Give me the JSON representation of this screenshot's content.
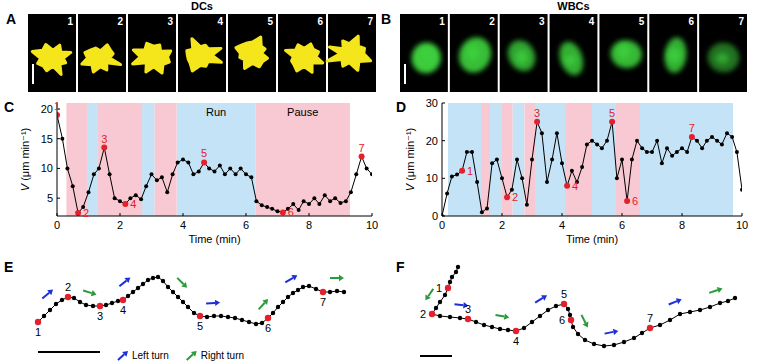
{
  "chart_data": [
    {
      "type": "image_strip",
      "panel": "A",
      "title": "DCs",
      "color": "#f5e61e",
      "frames": [
        "1",
        "2",
        "3",
        "4",
        "5",
        "6",
        "7"
      ]
    },
    {
      "type": "image_strip",
      "panel": "B",
      "title": "WBCs",
      "color": "#3ccf3c",
      "frames": [
        "1",
        "2",
        "3",
        "4",
        "5",
        "6",
        "7"
      ]
    },
    {
      "type": "line",
      "panel": "C",
      "color": "#000000",
      "marker": "circle",
      "x": [
        0,
        0.17,
        0.33,
        0.5,
        0.67,
        0.83,
        1,
        1.17,
        1.33,
        1.5,
        1.67,
        1.83,
        2,
        2.17,
        2.33,
        2.5,
        2.67,
        2.83,
        3,
        3.17,
        3.33,
        3.5,
        3.67,
        3.83,
        4,
        4.17,
        4.33,
        4.5,
        4.67,
        4.83,
        5,
        5.17,
        5.33,
        5.5,
        5.67,
        5.83,
        6,
        6.17,
        6.33,
        6.5,
        6.67,
        6.83,
        7,
        7.17,
        7.33,
        7.5,
        7.67,
        7.83,
        8,
        8.17,
        8.33,
        8.5,
        8.67,
        8.83,
        9,
        9.17,
        9.33,
        9.5,
        9.67,
        9.83,
        10
      ],
      "values": [
        19,
        15,
        10,
        7,
        2.5,
        3.5,
        6,
        9,
        10,
        13.5,
        9,
        5,
        4.5,
        4,
        5,
        5.5,
        4.8,
        7,
        9,
        8,
        8.5,
        6,
        9,
        11,
        11.5,
        11,
        9,
        9.5,
        11,
        10,
        9.5,
        10.5,
        9,
        10,
        9,
        10,
        9,
        8.5,
        4.5,
        3.8,
        3.5,
        3.2,
        2.8,
        2.6,
        3.2,
        4,
        3,
        4.5,
        4,
        5,
        4,
        5.5,
        4.5,
        5,
        4.2,
        4.5,
        6,
        9,
        12,
        10,
        9
      ],
      "point_labels": [
        "1",
        null,
        null,
        null,
        "2",
        null,
        null,
        null,
        null,
        "3",
        null,
        null,
        null,
        "4",
        null,
        null,
        null,
        null,
        null,
        null,
        null,
        null,
        null,
        null,
        null,
        null,
        null,
        null,
        "5",
        null,
        null,
        null,
        null,
        null,
        null,
        null,
        null,
        null,
        null,
        null,
        null,
        null,
        null,
        "6",
        null,
        null,
        null,
        null,
        null,
        null,
        null,
        null,
        null,
        null,
        null,
        null,
        null,
        null,
        "7",
        null,
        null
      ],
      "xlim": [
        0,
        10
      ],
      "xticks": [
        0,
        2,
        4,
        6,
        8,
        10
      ],
      "ylim": [
        2,
        21
      ],
      "yticks": [
        5,
        10,
        15,
        20
      ],
      "xlabel": "Time (min)",
      "ylabel": "V (μm min⁻¹)",
      "phases": [
        {
          "name": "Run",
          "color": "#c5e3f6",
          "intervals": [
            [
              0.95,
              1.3
            ],
            [
              2.7,
              3.1
            ],
            [
              3.8,
              6.3
            ]
          ]
        },
        {
          "name": "Pause",
          "color": "#f8c9d2",
          "intervals": [
            [
              0.3,
              0.95
            ],
            [
              1.3,
              2.7
            ],
            [
              3.1,
              3.8
            ],
            [
              6.3,
              9.3
            ]
          ]
        }
      ]
    },
    {
      "type": "line",
      "panel": "D",
      "color": "#000000",
      "marker": "circle",
      "x": [
        0,
        0.17,
        0.33,
        0.5,
        0.67,
        0.83,
        1,
        1.17,
        1.33,
        1.5,
        1.67,
        1.83,
        2,
        2.17,
        2.33,
        2.5,
        2.67,
        2.83,
        3,
        3.17,
        3.33,
        3.5,
        3.67,
        3.83,
        4,
        4.17,
        4.33,
        4.5,
        4.67,
        4.83,
        5,
        5.17,
        5.33,
        5.5,
        5.67,
        5.83,
        6,
        6.17,
        6.33,
        6.5,
        6.67,
        6.83,
        7,
        7.17,
        7.33,
        7.5,
        7.67,
        7.83,
        8,
        8.17,
        8.33,
        8.5,
        8.67,
        8.83,
        9,
        9.17,
        9.33,
        9.5,
        9.67,
        9.83,
        10
      ],
      "values": [
        0,
        6,
        10.5,
        11,
        12,
        17,
        17,
        9,
        1,
        2,
        14,
        15,
        10,
        5,
        7,
        15,
        10,
        3,
        15,
        25,
        22,
        9,
        15,
        22,
        14,
        8,
        12,
        9,
        13,
        19,
        20,
        19,
        18,
        20,
        25,
        10,
        15,
        4,
        15,
        20,
        18,
        17,
        17,
        20,
        14,
        18,
        16,
        17,
        18,
        17,
        21,
        20,
        18,
        20,
        21,
        20,
        19,
        22,
        21,
        17,
        7
      ],
      "point_labels": [
        null,
        null,
        null,
        null,
        "1",
        null,
        null,
        null,
        null,
        null,
        null,
        null,
        null,
        "2",
        null,
        null,
        null,
        null,
        null,
        "3",
        null,
        null,
        null,
        null,
        null,
        "4",
        null,
        null,
        null,
        null,
        null,
        null,
        null,
        null,
        "5",
        null,
        null,
        "6",
        null,
        null,
        null,
        null,
        null,
        null,
        null,
        null,
        null,
        null,
        null,
        null,
        "7",
        null,
        null,
        null,
        null,
        null,
        null,
        null,
        null,
        null,
        null
      ],
      "xlim": [
        0,
        10
      ],
      "xticks": [
        0,
        2,
        4,
        6,
        8,
        10
      ],
      "ylim": [
        0,
        30
      ],
      "yticks": [
        0,
        10,
        20,
        30
      ],
      "xlabel": "Time (min)",
      "ylabel": "V (μm min⁻¹)",
      "phases": [
        {
          "color": "#c5e3f6",
          "intervals": [
            [
              0.2,
              1.3
            ],
            [
              1.6,
              2.0
            ],
            [
              2.35,
              2.75
            ],
            [
              3.1,
              4.1
            ],
            [
              5.0,
              5.8
            ],
            [
              6.6,
              9.7
            ]
          ]
        },
        {
          "color": "#f8c9d2",
          "intervals": [
            [
              1.3,
              1.6
            ],
            [
              2.0,
              2.35
            ],
            [
              2.75,
              3.1
            ],
            [
              4.1,
              5.0
            ],
            [
              5.8,
              6.6
            ]
          ]
        }
      ]
    },
    {
      "type": "trajectory",
      "panel": "E",
      "color": "#000000",
      "marker": "circle",
      "tick_labels": false,
      "x": [
        38,
        44,
        50,
        56,
        62,
        68,
        74,
        80,
        86,
        93,
        100,
        106,
        112,
        118,
        123,
        128,
        133,
        138,
        143,
        148,
        153,
        158,
        163,
        168,
        173,
        178,
        183,
        188,
        194,
        200,
        207,
        214,
        221,
        228,
        235,
        242,
        249,
        256,
        262,
        268,
        273,
        278,
        283,
        288,
        293,
        298,
        303,
        309,
        316,
        323,
        330,
        337,
        344
      ],
      "values": [
        18,
        24,
        30,
        36,
        40,
        43,
        42,
        38,
        35,
        34,
        34,
        35,
        37,
        39,
        40,
        44,
        48,
        52,
        56,
        60,
        62,
        63,
        59,
        53,
        48,
        43,
        38,
        33,
        27,
        24,
        23,
        24,
        24,
        23,
        22,
        20,
        18,
        16,
        17,
        22,
        27,
        33,
        38,
        43,
        47,
        50,
        53,
        54,
        51,
        48,
        48,
        49,
        48
      ],
      "point_labels": [
        "1",
        null,
        null,
        null,
        null,
        "2",
        null,
        null,
        null,
        null,
        "3",
        null,
        null,
        null,
        "4",
        null,
        null,
        null,
        null,
        null,
        null,
        null,
        null,
        null,
        null,
        null,
        null,
        null,
        null,
        "5",
        null,
        null,
        null,
        null,
        null,
        null,
        null,
        null,
        null,
        "6",
        null,
        null,
        null,
        null,
        null,
        null,
        null,
        null,
        null,
        "7",
        null,
        null,
        null
      ],
      "xlim": [
        30,
        355
      ],
      "ylim": [
        0,
        75
      ],
      "turns": [
        {
          "name": "Left turn",
          "color": "#1c2fd8",
          "indices": [
            3,
            16,
            31,
            45
          ]
        },
        {
          "name": "Right turn",
          "color": "#2a9a3a",
          "indices": [
            8,
            24,
            40,
            51
          ]
        }
      ]
    },
    {
      "type": "trajectory",
      "panel": "F",
      "color": "#000000",
      "marker": "circle",
      "tick_labels": false,
      "x": [
        458,
        456,
        452,
        450,
        448,
        445,
        440,
        436,
        432,
        440,
        450,
        460,
        468,
        476,
        484,
        492,
        500,
        508,
        516,
        524,
        532,
        540,
        548,
        556,
        564,
        568,
        570,
        571,
        573,
        578,
        585,
        594,
        604,
        614,
        624,
        634,
        642,
        650,
        660,
        670,
        680,
        690,
        700,
        710,
        720,
        728,
        735
      ],
      "values": [
        83,
        78,
        73,
        68,
        62,
        55,
        48,
        42,
        36,
        34,
        33,
        32,
        31,
        28,
        25,
        23,
        21,
        20,
        19,
        22,
        28,
        34,
        40,
        44,
        46,
        41,
        35,
        30,
        23,
        16,
        10,
        6,
        4,
        5,
        8,
        12,
        17,
        22,
        25,
        30,
        36,
        38,
        40,
        43,
        47,
        49,
        52
      ],
      "point_labels": [
        null,
        null,
        null,
        null,
        "1",
        null,
        null,
        null,
        "2",
        null,
        null,
        null,
        "3",
        null,
        null,
        null,
        null,
        null,
        "4",
        null,
        null,
        null,
        null,
        null,
        "5",
        null,
        null,
        "6",
        null,
        null,
        null,
        null,
        null,
        null,
        null,
        null,
        null,
        "7",
        null,
        null,
        null,
        null,
        null,
        null,
        null,
        null,
        null
      ],
      "xlim": [
        420,
        745
      ],
      "ylim": [
        0,
        90
      ],
      "turns": [
        {
          "color": "#1c2fd8",
          "indices": [
            11,
            22,
            33,
            40
          ]
        },
        {
          "color": "#2a9a3a",
          "indices": [
            6,
            16,
            28,
            44
          ]
        }
      ]
    }
  ]
}
